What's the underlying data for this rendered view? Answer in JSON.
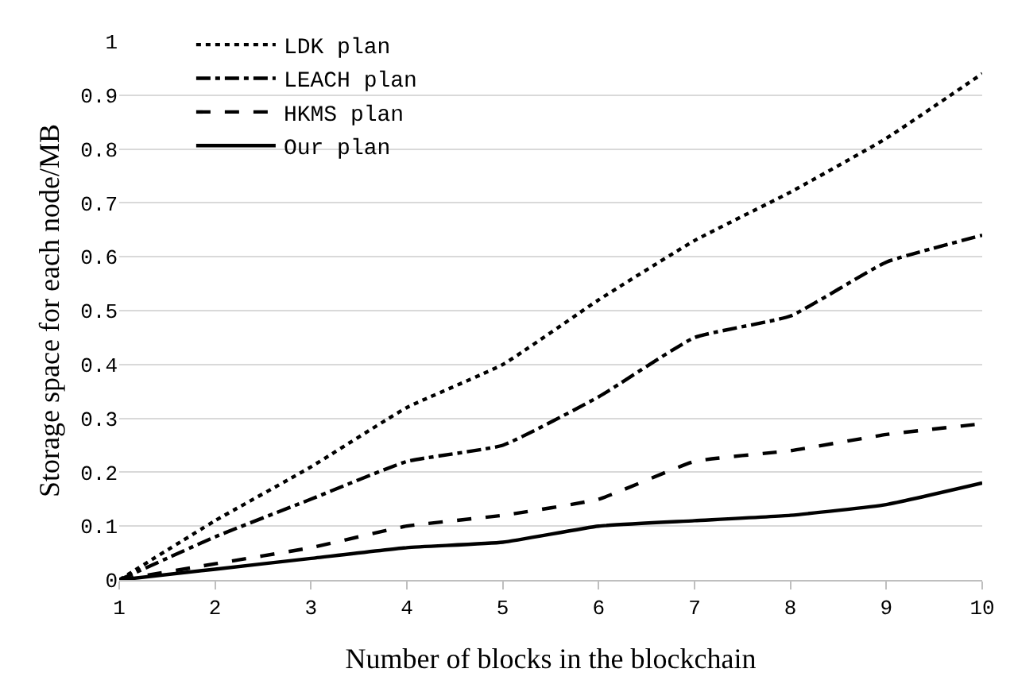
{
  "chart_data": {
    "type": "line",
    "xlabel": "Number of blocks in the blockchain",
    "ylabel": "Storage space for each node/MB",
    "x": [
      1,
      2,
      3,
      4,
      5,
      6,
      7,
      8,
      9,
      10
    ],
    "series": [
      {
        "name": "LDK plan",
        "color": "#000000",
        "line_style": "dotted",
        "values": [
          0,
          0.11,
          0.21,
          0.32,
          0.4,
          0.52,
          0.63,
          0.72,
          0.82,
          0.94
        ]
      },
      {
        "name": "LEACH plan",
        "color": "#000000",
        "line_style": "dashdot",
        "values": [
          0,
          0.08,
          0.15,
          0.22,
          0.25,
          0.34,
          0.45,
          0.49,
          0.59,
          0.64
        ]
      },
      {
        "name": "HKMS plan",
        "color": "#000000",
        "line_style": "dashed",
        "values": [
          0,
          0.03,
          0.06,
          0.1,
          0.12,
          0.15,
          0.22,
          0.24,
          0.27,
          0.29
        ]
      },
      {
        "name": "Our plan",
        "color": "#000000",
        "line_style": "solid",
        "values": [
          0,
          0.02,
          0.04,
          0.06,
          0.07,
          0.1,
          0.11,
          0.12,
          0.14,
          0.18
        ]
      }
    ],
    "xlim": [
      1,
      10
    ],
    "xticks": [
      1,
      2,
      3,
      4,
      5,
      6,
      7,
      8,
      9,
      10
    ],
    "ylim": [
      0,
      1
    ],
    "yticks": [
      0,
      0.1,
      0.2,
      0.3,
      0.4,
      0.5,
      0.6,
      0.7,
      0.8,
      0.9,
      1
    ],
    "grid": "y",
    "legend": "top left",
    "marker": "none"
  }
}
